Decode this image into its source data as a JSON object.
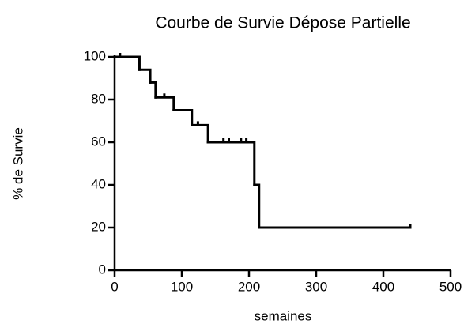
{
  "chart_data": {
    "type": "step",
    "title": "Courbe de Survie Dépose Partielle",
    "x_label": "semaines",
    "y_label": "% de Survie",
    "series": [
      {
        "name": "Survie",
        "color": "#000000",
        "x": [
          0,
          37,
          53,
          61,
          88,
          115,
          139,
          208,
          215,
          440
        ],
        "values": [
          100,
          94,
          88,
          81,
          75,
          68,
          60,
          40,
          20,
          20
        ]
      }
    ],
    "censored": {
      "x": [
        8,
        74,
        124,
        162,
        170,
        188,
        196,
        440
      ],
      "values": [
        100,
        81,
        68,
        60,
        60,
        60,
        60,
        20
      ]
    },
    "xlim": [
      0,
      500
    ],
    "xticks": [
      0,
      100,
      200,
      300,
      400,
      500
    ],
    "ylim": [
      0,
      100
    ],
    "yticks": [
      0,
      20,
      40,
      60,
      80,
      100
    ],
    "grid": false
  }
}
